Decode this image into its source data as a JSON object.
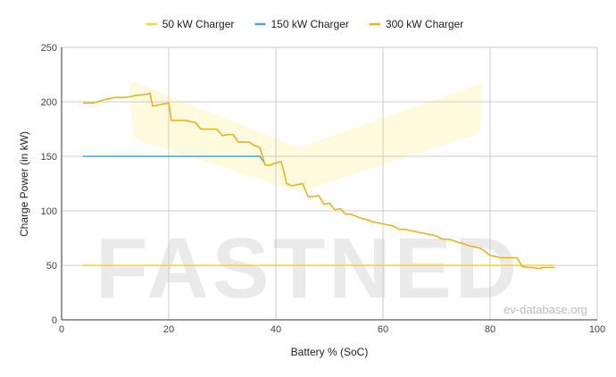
{
  "watermark": {
    "brand": "FASTNED",
    "source": "ev-database.org"
  },
  "chart_data": {
    "type": "line",
    "xlabel": "Battery % (SoC)",
    "ylabel": "Charge Power (in kW)",
    "xlim": [
      0,
      100
    ],
    "ylim": [
      0,
      250
    ],
    "xticks": [
      0,
      20,
      40,
      60,
      80,
      100
    ],
    "yticks": [
      0,
      50,
      100,
      150,
      200,
      250
    ],
    "grid": true,
    "legend_position": "top",
    "series": [
      {
        "name": "50 kW Charger",
        "color": "#f2d633",
        "x": [
          4,
          92
        ],
        "y": [
          50,
          50
        ]
      },
      {
        "name": "150 kW Charger",
        "color": "#45a8d6",
        "x": [
          4,
          37,
          38
        ],
        "y": [
          150,
          150,
          143
        ]
      },
      {
        "name": "300 kW Charger",
        "color": "#e8b41c",
        "x": [
          4,
          6,
          8,
          9,
          10,
          11,
          12,
          13,
          14,
          16,
          16.5,
          17,
          19,
          20,
          20.5,
          22,
          23,
          24,
          25,
          26,
          27,
          28,
          29,
          30,
          31,
          32,
          33,
          34,
          35,
          36,
          37,
          38,
          39,
          40,
          41,
          41.5,
          42,
          43,
          44,
          45,
          46,
          47,
          48,
          49,
          50,
          51,
          52,
          53,
          54,
          55,
          56,
          57,
          58,
          59,
          60,
          61,
          62,
          63,
          64,
          65,
          66,
          67,
          68,
          69,
          70,
          71,
          72,
          73,
          74,
          75,
          76,
          77,
          78,
          79,
          80,
          81,
          82,
          83,
          84,
          85,
          86,
          87,
          88,
          89,
          90,
          91,
          92
        ],
        "y": [
          199,
          199,
          202,
          203,
          204,
          204,
          204,
          205,
          206,
          207,
          208,
          196,
          198,
          199,
          183,
          183,
          183,
          182,
          181,
          175,
          175,
          175,
          175,
          169,
          170,
          170,
          163,
          163,
          163,
          160,
          158,
          142,
          142,
          144,
          145,
          136,
          125,
          123,
          124,
          125,
          113,
          113,
          114,
          106,
          107,
          101,
          102,
          97,
          97,
          95,
          93,
          92,
          90,
          89,
          88,
          87,
          86,
          83,
          83,
          82,
          81,
          80,
          79,
          78,
          77,
          74,
          74,
          73,
          71,
          70,
          68,
          67,
          66,
          63,
          59,
          58,
          57,
          57,
          57,
          57,
          49,
          48,
          48,
          47,
          48,
          48,
          48
        ]
      }
    ]
  }
}
